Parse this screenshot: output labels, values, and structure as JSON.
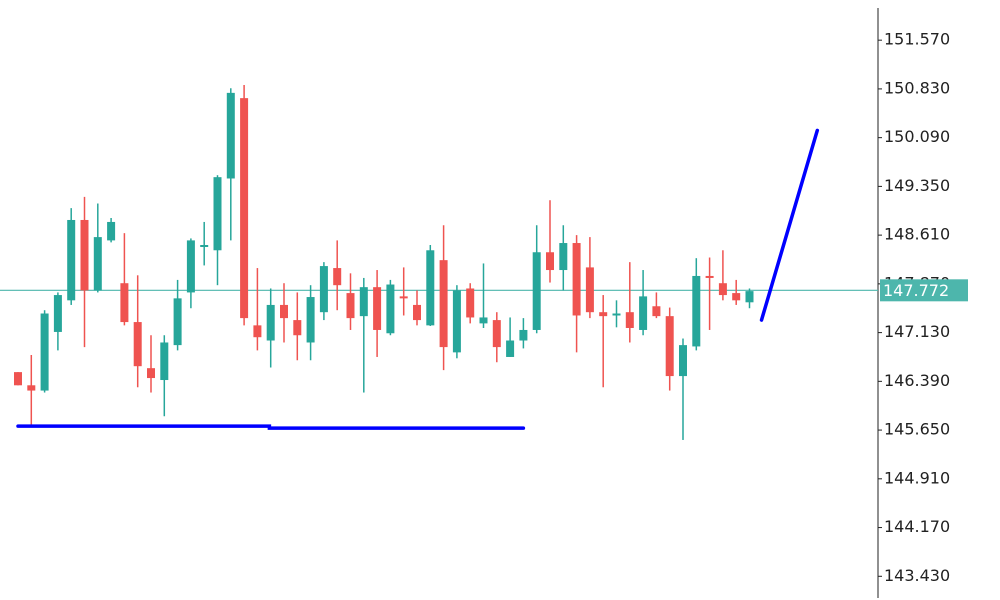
{
  "chart_data": {
    "type": "candlestick",
    "open": [
      146.53,
      146.33,
      146.25,
      147.14,
      147.62,
      148.84,
      147.77,
      148.53,
      147.88,
      147.29,
      146.59,
      146.41,
      146.94,
      147.74,
      148.43,
      148.38,
      149.47,
      150.69,
      147.24,
      147.01,
      147.55,
      147.32,
      146.98,
      147.44,
      148.11,
      147.73,
      147.38,
      147.82,
      147.12,
      147.68,
      147.55,
      147.24,
      148.23,
      146.83,
      147.8,
      147.27,
      147.32,
      146.76,
      147.01,
      147.17,
      148.35,
      148.08,
      148.49,
      148.12,
      147.44,
      147.39,
      147.44,
      147.17,
      147.53,
      147.38,
      146.47,
      146.92,
      147.99,
      147.88,
      147.73,
      147.59
    ],
    "high": [
      146.53,
      146.79,
      147.47,
      147.74,
      149.02,
      149.19,
      149.09,
      148.87,
      148.64,
      148.0,
      147.09,
      147.09,
      147.93,
      148.56,
      148.81,
      149.52,
      150.84,
      150.89,
      148.11,
      147.8,
      147.88,
      147.74,
      147.85,
      148.2,
      148.53,
      148.03,
      147.96,
      148.08,
      147.93,
      148.12,
      147.77,
      148.46,
      148.76,
      147.85,
      147.88,
      148.18,
      147.44,
      147.36,
      147.35,
      148.76,
      149.14,
      148.76,
      148.61,
      148.58,
      147.7,
      147.62,
      148.2,
      148.08,
      147.74,
      147.51,
      147.04,
      148.26,
      148.27,
      148.38,
      147.93,
      147.8
    ],
    "low": [
      146.33,
      145.72,
      146.22,
      146.86,
      147.55,
      146.91,
      147.74,
      148.5,
      147.24,
      146.3,
      146.22,
      145.86,
      146.86,
      147.5,
      148.15,
      147.85,
      148.53,
      147.24,
      146.86,
      146.6,
      146.98,
      146.71,
      146.71,
      147.32,
      147.47,
      147.17,
      146.22,
      146.76,
      147.09,
      147.39,
      147.24,
      147.23,
      146.56,
      146.74,
      147.27,
      147.2,
      146.68,
      146.76,
      146.89,
      147.12,
      147.89,
      147.77,
      146.83,
      147.35,
      146.3,
      147.21,
      146.98,
      147.09,
      147.35,
      146.25,
      145.5,
      146.86,
      147.17,
      147.62,
      147.55,
      147.5
    ],
    "close": [
      146.33,
      146.25,
      147.42,
      147.7,
      148.84,
      147.77,
      148.58,
      148.81,
      147.29,
      146.62,
      146.44,
      146.98,
      147.65,
      148.53,
      148.46,
      149.49,
      150.77,
      147.35,
      147.06,
      147.55,
      147.35,
      147.09,
      147.67,
      148.14,
      147.85,
      147.35,
      147.82,
      147.17,
      147.86,
      147.65,
      147.32,
      148.38,
      146.91,
      147.77,
      147.36,
      147.36,
      146.91,
      147.01,
      147.17,
      148.35,
      148.08,
      148.49,
      147.39,
      147.44,
      147.38,
      147.42,
      147.2,
      147.68,
      147.38,
      146.47,
      146.94,
      147.99,
      147.96,
      147.7,
      147.62,
      147.76
    ],
    "up_color": "#26a69a",
    "down_color": "#ef5350",
    "ylim": [
      143.07,
      152.18
    ],
    "yticks": [
      {
        "value": 151.57,
        "label": "151.570"
      },
      {
        "value": 150.83,
        "label": "150.830"
      },
      {
        "value": 150.09,
        "label": "150.090"
      },
      {
        "value": 149.35,
        "label": "149.350"
      },
      {
        "value": 148.61,
        "label": "148.610"
      },
      {
        "value": 147.87,
        "label": "147.870"
      },
      {
        "value": 147.13,
        "label": "147.130"
      },
      {
        "value": 146.39,
        "label": "146.390"
      },
      {
        "value": 145.65,
        "label": "145.650"
      },
      {
        "value": 144.91,
        "label": "144.910"
      },
      {
        "value": 144.17,
        "label": "144.170"
      },
      {
        "value": 143.43,
        "label": "143.430"
      }
    ],
    "last_price": 147.772,
    "last_price_color": "#4db6ac",
    "drawings": [
      {
        "color": "#0000ff",
        "x": [
          0,
          18.9,
          18.9,
          38
        ],
        "y": [
          145.71,
          145.71,
          145.68,
          145.68
        ]
      },
      {
        "color": "#0000ff",
        "x": [
          55.9,
          60.1
        ],
        "y": [
          147.32,
          150.2
        ]
      }
    ]
  }
}
